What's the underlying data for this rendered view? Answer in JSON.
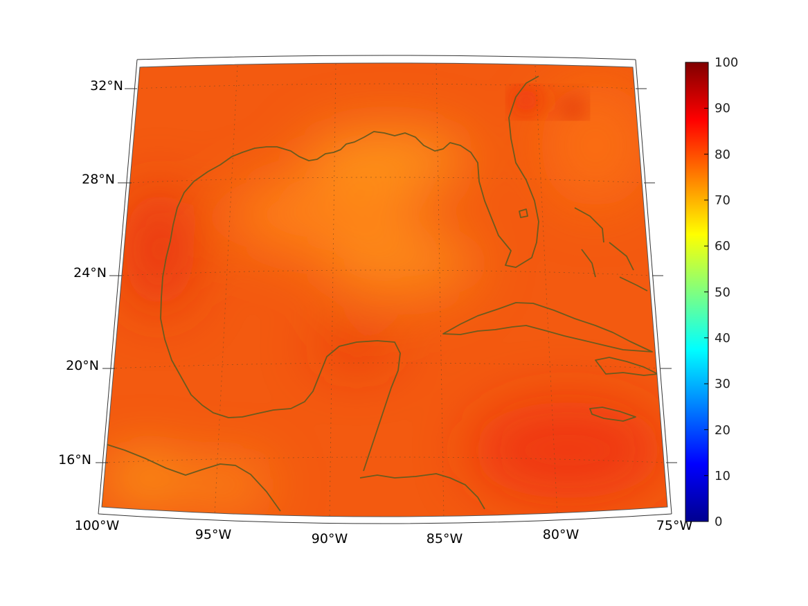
{
  "map": {
    "lat_labels": [
      "32°N",
      "28°N",
      "24°N",
      "20°N",
      "16°N"
    ],
    "lon_labels": [
      "100°W",
      "95°W",
      "90°W",
      "85°W",
      "80°W",
      "75°W"
    ],
    "extent": {
      "lon_min": -100,
      "lon_max": -75,
      "lat_min": 14,
      "lat_max": 33
    },
    "grid": true,
    "coastline_color": "#6b5a1e",
    "field_dominant_color": "#f35a10"
  },
  "colorbar": {
    "ticks": [
      "100",
      "90",
      "80",
      "70",
      "60",
      "50",
      "40",
      "30",
      "20",
      "10",
      "0"
    ],
    "range": [
      0,
      100
    ],
    "colormap": "jet"
  }
}
